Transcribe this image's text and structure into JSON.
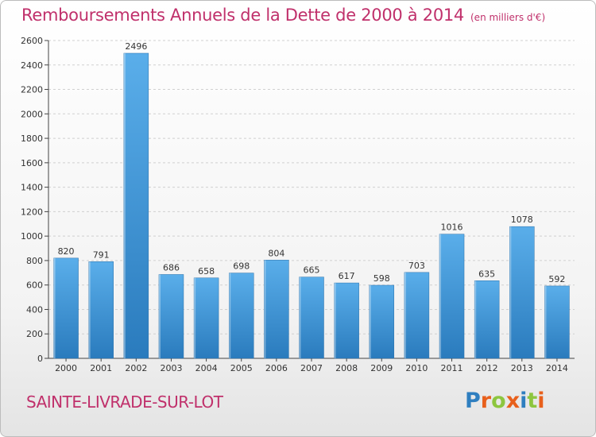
{
  "title": "Remboursements Annuels de la Dette de 2000 à 2014",
  "unit_note": "(en milliers d'€)",
  "city": "SAINTE-LIVRADE-SUR-LOT",
  "logo": {
    "text": "Proxiti",
    "letters": [
      {
        "ch": "P",
        "color": "#2f7fc0"
      },
      {
        "ch": "r",
        "color": "#e8601c"
      },
      {
        "ch": "o",
        "color": "#8dc63f"
      },
      {
        "ch": "x",
        "color": "#e8601c"
      },
      {
        "ch": "i",
        "color": "#2f7fc0"
      },
      {
        "ch": "t",
        "color": "#8dc63f"
      },
      {
        "ch": "i",
        "color": "#e8601c"
      }
    ]
  },
  "colors": {
    "bar_top": "#5aaeea",
    "bar_bottom": "#2a7bbd",
    "grid": "#d0d0d0",
    "title": "#c0306b"
  },
  "chart_data": {
    "type": "bar",
    "title": "Remboursements Annuels de la Dette de 2000 à 2014",
    "categories": [
      "2000",
      "2001",
      "2002",
      "2003",
      "2004",
      "2005",
      "2006",
      "2007",
      "2008",
      "2009",
      "2010",
      "2011",
      "2012",
      "2013",
      "2014"
    ],
    "values": [
      820,
      791,
      2496,
      686,
      658,
      698,
      804,
      665,
      617,
      598,
      703,
      1016,
      635,
      1078,
      592
    ],
    "ylim": [
      0,
      2600
    ],
    "yticks": [
      0,
      200,
      400,
      600,
      800,
      1000,
      1200,
      1400,
      1600,
      1800,
      2000,
      2200,
      2400,
      2600
    ],
    "grid": true,
    "data_labels": true
  }
}
